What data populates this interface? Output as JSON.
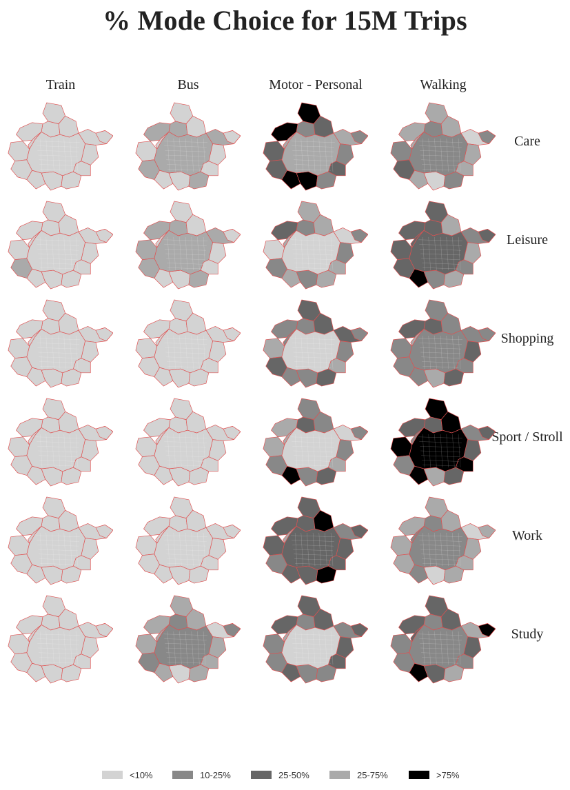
{
  "title": "% Mode Choice for 15M Trips",
  "columns": [
    "Train",
    "Bus",
    "Motor - Personal",
    "Walking"
  ],
  "rows": [
    "Care",
    "Leisure",
    "Shopping",
    "Sport / Stroll",
    "Work",
    "Study"
  ],
  "legend": [
    {
      "label": "<10%",
      "color": "#d3d3d3"
    },
    {
      "label": "10-25%",
      "color": "#888888"
    },
    {
      "label": "25-50%",
      "color": "#666666"
    },
    {
      "label": "25-75%",
      "color": "#aaaaaa"
    },
    {
      "label": ">75%",
      "color": "#000000"
    }
  ],
  "colors": {
    "boundary": "#e05050",
    "background": "#ffffff",
    "text": "#222222"
  },
  "maps": [
    {
      "column": "Train",
      "row": "Care",
      "zones": [
        0,
        0,
        0,
        0,
        0,
        0,
        0,
        0,
        0,
        0,
        0,
        0,
        0,
        0
      ],
      "center": 0
    },
    {
      "column": "Bus",
      "row": "Care",
      "zones": [
        0,
        3,
        0,
        3,
        3,
        0,
        0,
        3,
        0,
        0,
        3,
        0,
        0,
        0
      ],
      "center": 3
    },
    {
      "column": "Motor - Personal",
      "row": "Care",
      "zones": [
        4,
        1,
        2,
        4,
        3,
        2,
        1,
        2,
        4,
        4,
        1,
        2,
        3,
        1
      ],
      "center": 3
    },
    {
      "column": "Walking",
      "row": "Care",
      "zones": [
        3,
        1,
        3,
        3,
        0,
        1,
        3,
        2,
        3,
        0,
        1,
        3,
        3,
        1
      ],
      "center": 1
    },
    {
      "column": "Train",
      "row": "Leisure",
      "zones": [
        0,
        0,
        0,
        0,
        0,
        0,
        0,
        3,
        0,
        0,
        0,
        0,
        0,
        0
      ],
      "center": 0
    },
    {
      "column": "Bus",
      "row": "Leisure",
      "zones": [
        0,
        3,
        0,
        3,
        3,
        3,
        0,
        3,
        0,
        0,
        3,
        0,
        0,
        0
      ],
      "center": 3
    },
    {
      "column": "Motor - Personal",
      "row": "Leisure",
      "zones": [
        3,
        1,
        3,
        2,
        0,
        0,
        1,
        1,
        3,
        1,
        3,
        3,
        3,
        1
      ],
      "center": 0
    },
    {
      "column": "Walking",
      "row": "Leisure",
      "zones": [
        2,
        2,
        3,
        2,
        1,
        2,
        3,
        2,
        4,
        1,
        3,
        1,
        2,
        2
      ],
      "center": 2
    },
    {
      "column": "Train",
      "row": "Shopping",
      "zones": [
        0,
        0,
        0,
        0,
        0,
        0,
        0,
        0,
        0,
        0,
        0,
        0,
        0,
        0
      ],
      "center": 0
    },
    {
      "column": "Bus",
      "row": "Shopping",
      "zones": [
        0,
        0,
        0,
        0,
        0,
        0,
        0,
        0,
        0,
        0,
        0,
        0,
        0,
        0
      ],
      "center": 0
    },
    {
      "column": "Motor - Personal",
      "row": "Shopping",
      "zones": [
        2,
        1,
        2,
        1,
        2,
        3,
        1,
        2,
        1,
        1,
        2,
        3,
        1,
        1
      ],
      "center": 0
    },
    {
      "column": "Walking",
      "row": "Shopping",
      "zones": [
        1,
        2,
        1,
        2,
        1,
        1,
        2,
        1,
        1,
        3,
        2,
        1,
        3,
        1
      ],
      "center": 1
    },
    {
      "column": "Train",
      "row": "Sport / Stroll",
      "zones": [
        0,
        0,
        0,
        0,
        0,
        0,
        0,
        0,
        0,
        0,
        0,
        0,
        0,
        0
      ],
      "center": 0
    },
    {
      "column": "Bus",
      "row": "Sport / Stroll",
      "zones": [
        0,
        0,
        0,
        0,
        0,
        0,
        0,
        0,
        0,
        0,
        0,
        0,
        0,
        0
      ],
      "center": 0
    },
    {
      "column": "Motor - Personal",
      "row": "Sport / Stroll",
      "zones": [
        1,
        2,
        1,
        3,
        0,
        3,
        1,
        1,
        4,
        1,
        2,
        3,
        3,
        1
      ],
      "center": 0
    },
    {
      "column": "Walking",
      "row": "Sport / Stroll",
      "zones": [
        4,
        2,
        4,
        2,
        1,
        4,
        2,
        1,
        4,
        3,
        2,
        4,
        1,
        2
      ],
      "center": 4
    },
    {
      "column": "Train",
      "row": "Work",
      "zones": [
        0,
        0,
        0,
        0,
        0,
        0,
        0,
        0,
        0,
        0,
        0,
        0,
        0,
        0
      ],
      "center": 0
    },
    {
      "column": "Bus",
      "row": "Work",
      "zones": [
        0,
        0,
        0,
        0,
        0,
        0,
        0,
        0,
        0,
        0,
        0,
        0,
        0,
        0
      ],
      "center": 0
    },
    {
      "column": "Motor - Personal",
      "row": "Work",
      "zones": [
        2,
        2,
        4,
        2,
        1,
        2,
        2,
        1,
        2,
        2,
        4,
        2,
        3,
        2
      ],
      "center": 2
    },
    {
      "column": "Walking",
      "row": "Work",
      "zones": [
        3,
        1,
        3,
        3,
        0,
        3,
        3,
        3,
        1,
        0,
        3,
        3,
        1,
        3
      ],
      "center": 1
    },
    {
      "column": "Train",
      "row": "Study",
      "zones": [
        0,
        0,
        0,
        0,
        0,
        0,
        0,
        0,
        0,
        0,
        0,
        0,
        0,
        0
      ],
      "center": 0
    },
    {
      "column": "Bus",
      "row": "Study",
      "zones": [
        3,
        1,
        3,
        3,
        0,
        3,
        3,
        1,
        3,
        0,
        3,
        3,
        3,
        1
      ],
      "center": 1
    },
    {
      "column": "Motor - Personal",
      "row": "Study",
      "zones": [
        2,
        1,
        2,
        2,
        1,
        1,
        2,
        1,
        2,
        1,
        1,
        2,
        3,
        2
      ],
      "center": 0
    },
    {
      "column": "Walking",
      "row": "Study",
      "zones": [
        2,
        1,
        2,
        2,
        3,
        1,
        2,
        1,
        4,
        2,
        3,
        1,
        2,
        4
      ],
      "center": 1
    }
  ]
}
